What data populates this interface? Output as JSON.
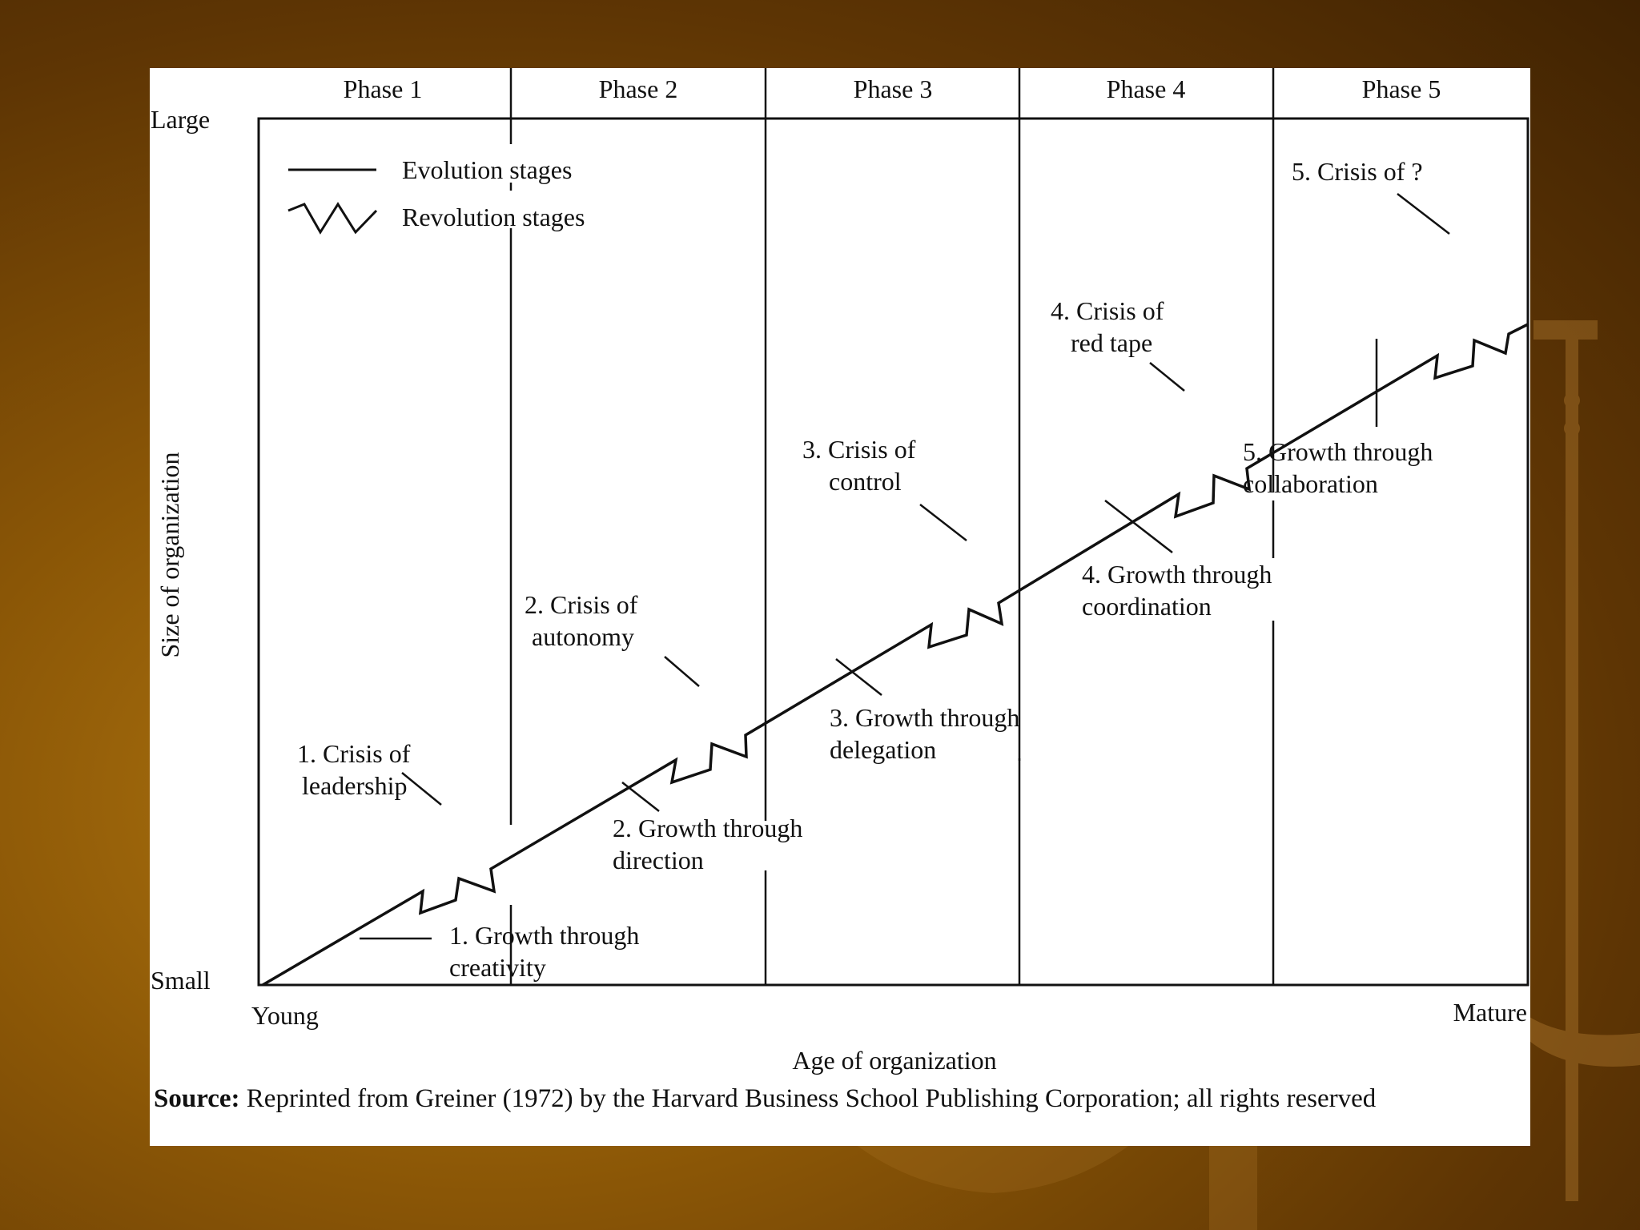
{
  "phases": [
    "Phase 1",
    "Phase 2",
    "Phase 3",
    "Phase 4",
    "Phase 5"
  ],
  "axis": {
    "y_label": "Size of organization",
    "y_top": "Large",
    "y_bottom": "Small",
    "x_label": "Age of organization",
    "x_left": "Young",
    "x_right": "Mature"
  },
  "legend": {
    "evolution": "Evolution stages",
    "revolution": "Revolution stages"
  },
  "crises": [
    {
      "line1": "1. Crisis of",
      "line2": "leadership"
    },
    {
      "line1": "2. Crisis of",
      "line2": "autonomy"
    },
    {
      "line1": "3. Crisis of",
      "line2": "control"
    },
    {
      "line1": "4. Crisis of",
      "line2": "red tape"
    },
    {
      "line1": "5. Crisis of ?",
      "line2": ""
    }
  ],
  "growths": [
    {
      "line1": "1. Growth through",
      "line2": "creativity"
    },
    {
      "line1": "2. Growth through",
      "line2": "direction"
    },
    {
      "line1": "3. Growth through",
      "line2": "delegation"
    },
    {
      "line1": "4. Growth through",
      "line2": "coordination"
    },
    {
      "line1": "5. Growth through",
      "line2": "collaboration"
    }
  ],
  "source": {
    "label": "Source:",
    "text": " Reprinted from Greiner (1972) by the Harvard Business School Publishing Corporation; all rights reserved"
  },
  "colors": {
    "background": "#8a5606",
    "panel": "#ffffff",
    "ink": "#111111"
  }
}
